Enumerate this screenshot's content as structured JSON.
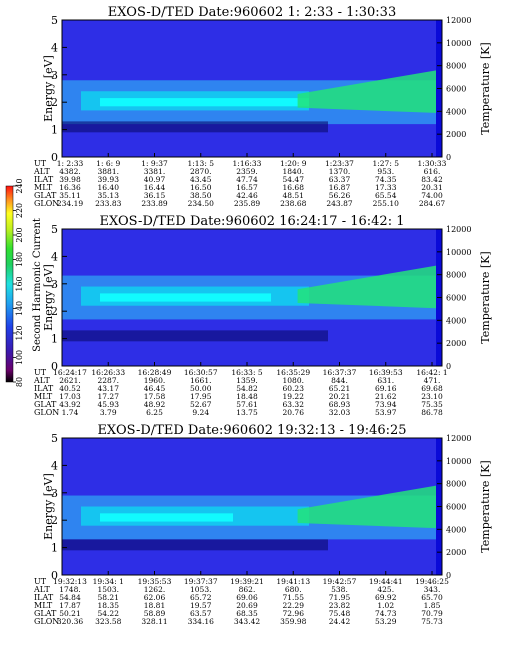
{
  "chart_data": [
    {
      "type": "heatmap",
      "title": "EXOS-D/TED   Date:960602   1: 2:33 - 1:30:33",
      "ylabel": "Energy [eV]",
      "ylabel_right": "Temperature [K]",
      "ylim": [
        0,
        5
      ],
      "ylim_right": [
        0,
        12000
      ],
      "yticks": [
        "0",
        "1",
        "2",
        "3",
        "4",
        "5"
      ],
      "yticks_right": [
        "0",
        "2000",
        "4000",
        "6000",
        "8000",
        "10000",
        "12000"
      ],
      "grid": false,
      "row_labels": [
        "UT",
        "ALT",
        "ILAT",
        "MLT",
        "GLAT",
        "GLON"
      ],
      "columns": [
        [
          "1: 2:33",
          "4382.",
          "39.98",
          "16.36",
          "35.11",
          "234.19"
        ],
        [
          "1: 6: 9",
          "3881.",
          "39.93",
          "16.40",
          "35.13",
          "233.83"
        ],
        [
          "1: 9:37",
          "3381.",
          "40.97",
          "16.44",
          "36.15",
          "233.89"
        ],
        [
          "1:13: 5",
          "2870.",
          "43.45",
          "16.50",
          "38.50",
          "234.50"
        ],
        [
          "1:16:33",
          "2359.",
          "47.74",
          "16.57",
          "42.46",
          "235.89"
        ],
        [
          "1:20: 9",
          "1840.",
          "54.47",
          "16.68",
          "48.51",
          "238.68"
        ],
        [
          "1:23:37",
          "1370.",
          "63.37",
          "16.87",
          "56.26",
          "243.87"
        ],
        [
          "1:27: 5",
          "953.",
          "74.35",
          "17.33",
          "65.54",
          "255.10"
        ],
        [
          "1:30:33",
          "616.",
          "83.42",
          "20.31",
          "74.00",
          "284.67"
        ]
      ]
    },
    {
      "type": "heatmap",
      "title": "EXOS-D/TED   Date:960602   16:24:17 - 16:42: 1",
      "ylabel": "Energy [eV]",
      "ylabel_right": "Temperature [K]",
      "ylim": [
        0,
        5
      ],
      "ylim_right": [
        0,
        12000
      ],
      "yticks": [
        "0",
        "1",
        "2",
        "3",
        "4",
        "5"
      ],
      "yticks_right": [
        "0",
        "2000",
        "4000",
        "6000",
        "8000",
        "10000",
        "12000"
      ],
      "grid": false,
      "row_labels": [
        "UT",
        "ALT",
        "ILAT",
        "MLT",
        "GLAT",
        "GLON"
      ],
      "columns": [
        [
          "16:24:17",
          "2621.",
          "40.52",
          "17.03",
          "43.92",
          "1.74"
        ],
        [
          "16:26:33",
          "2287.",
          "43.17",
          "17.27",
          "45.93",
          "3.79"
        ],
        [
          "16:28:49",
          "1960.",
          "46.45",
          "17.58",
          "48.92",
          "6.25"
        ],
        [
          "16:30:57",
          "1661.",
          "50.00",
          "17.95",
          "52.67",
          "9.24"
        ],
        [
          "16:33: 5",
          "1359.",
          "54.82",
          "18.48",
          "57.61",
          "13.75"
        ],
        [
          "16:35:29",
          "1080.",
          "60.23",
          "19.22",
          "63.32",
          "20.76"
        ],
        [
          "16:37:37",
          "844.",
          "65.21",
          "20.21",
          "68.93",
          "32.03"
        ],
        [
          "16:39:53",
          "631.",
          "69.16",
          "21.62",
          "73.94",
          "53.97"
        ],
        [
          "16:42: 1",
          "471.",
          "69.68",
          "23.10",
          "75.35",
          "86.78"
        ]
      ]
    },
    {
      "type": "heatmap",
      "title": "EXOS-D/TED   Date:960602   19:32:13 - 19:46:25",
      "ylabel": "Energy [eV]",
      "ylabel_right": "Temperature [K]",
      "ylim": [
        0,
        5
      ],
      "ylim_right": [
        0,
        12000
      ],
      "yticks": [
        "0",
        "1",
        "2",
        "3",
        "4",
        "5"
      ],
      "yticks_right": [
        "0",
        "2000",
        "4000",
        "6000",
        "8000",
        "10000",
        "12000"
      ],
      "grid": false,
      "row_labels": [
        "UT",
        "ALT",
        "ILAT",
        "MLT",
        "GLAT",
        "GLON"
      ],
      "columns": [
        [
          "19:32:13",
          "1748.",
          "54.84",
          "17.87",
          "50.21",
          "320.36"
        ],
        [
          "19:34: 1",
          "1503.",
          "58.21",
          "18.35",
          "54.22",
          "323.58"
        ],
        [
          "19:35:53",
          "1262.",
          "62.06",
          "18.81",
          "58.89",
          "328.11"
        ],
        [
          "19:37:37",
          "1053.",
          "65.72",
          "19.57",
          "63.57",
          "334.16"
        ],
        [
          "19:39:21",
          "862.",
          "69.06",
          "20.69",
          "68.35",
          "343.42"
        ],
        [
          "19:41:13",
          "680.",
          "71.55",
          "22.29",
          "72.96",
          "359.98"
        ],
        [
          "19:42:57",
          "538.",
          "71.95",
          "23.82",
          "75.48",
          "24.42"
        ],
        [
          "19:44:41",
          "425.",
          "69.92",
          "1.02",
          "74.73",
          "53.29"
        ],
        [
          "19:46:25",
          "343.",
          "65.70",
          "1.85",
          "70.79",
          "75.73"
        ]
      ]
    }
  ],
  "colorbar": {
    "label": "Second Harmonic Current",
    "ticks": [
      "80",
      "100",
      "120",
      "140",
      "160",
      "180",
      "200",
      "220",
      "240"
    ]
  },
  "colors": {
    "bg": "#2e2ee6",
    "band_light": "#2f9af2",
    "band_mid": "#10d0f0",
    "band_bright": "#11ffff",
    "green": "#22e37a",
    "dark": "#0a0a6e",
    "right_stripe": "#0a0ad8"
  }
}
